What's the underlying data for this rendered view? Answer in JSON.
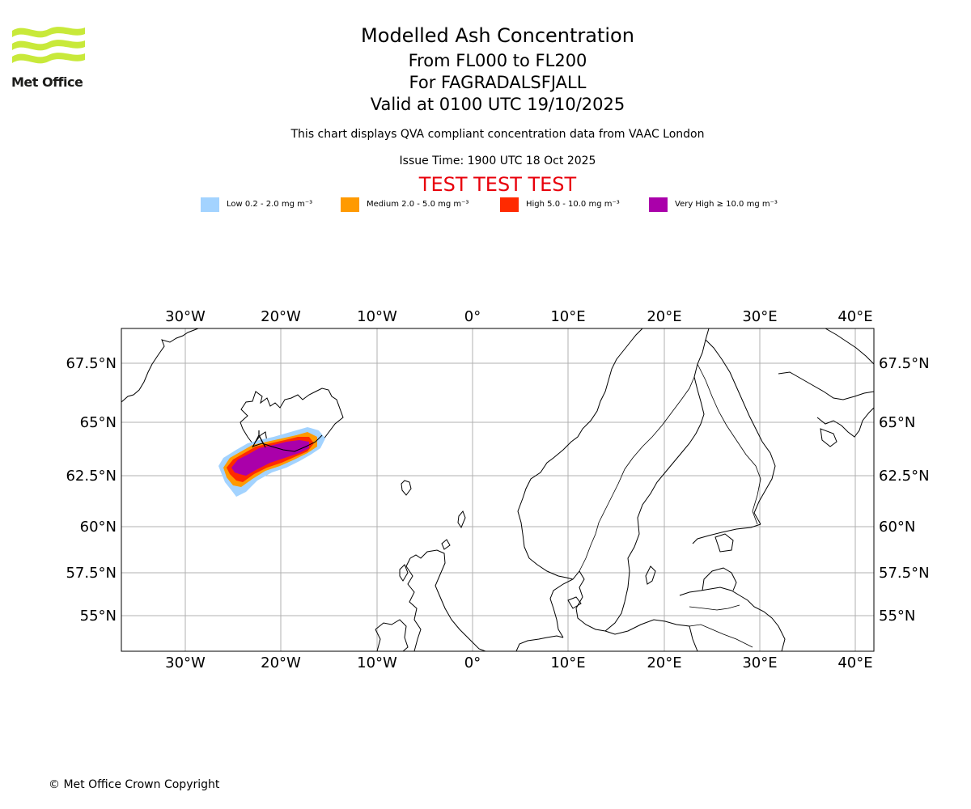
{
  "logo": {
    "name": "Met Office",
    "colors": [
      "#c8e93a",
      "#1d1d1b"
    ]
  },
  "title": {
    "line1": "Modelled Ash Concentration",
    "line2": "From FL000 to FL200",
    "line3": "For FAGRADALSFJALL",
    "line4": "Valid at 0100 UTC 19/10/2025"
  },
  "subtitle": "This chart displays QVA compliant concentration data from VAAC London",
  "issue_time": "Issue Time: 1900 UTC 18 Oct 2025",
  "test_banner": "TEST TEST TEST",
  "legend": [
    {
      "label": "Low 0.2 - 2.0 mg m⁻³",
      "color": "#a3d3ff"
    },
    {
      "label": "Medium 2.0 - 5.0 mg m⁻³",
      "color": "#ff9a00"
    },
    {
      "label": "High 5.0 - 10.0 mg m⁻³",
      "color": "#ff2a00"
    },
    {
      "label": "Very High  ≥  10.0 mg m⁻³",
      "color": "#aa00aa"
    }
  ],
  "map": {
    "extent": {
      "lon": [
        -36.7,
        41.8
      ],
      "lat": [
        53.6,
        69.3
      ]
    },
    "lon_ticks": [
      "30°W",
      "20°W",
      "10°W",
      "0°",
      "10°E",
      "20°E",
      "30°E",
      "40°E"
    ],
    "lat_ticks": [
      "67.5°N",
      "65°N",
      "62.5°N",
      "60°N",
      "57.5°N",
      "55°N"
    ],
    "gridlines": true
  },
  "copyright": "© Met Office Crown Copyright"
}
